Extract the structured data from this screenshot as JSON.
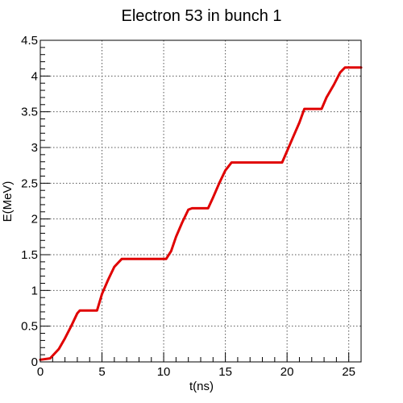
{
  "chart_data": {
    "type": "line",
    "title": "Electron 53 in bunch 1",
    "xlabel": "t(ns)",
    "ylabel": "E(MeV)",
    "xlim": [
      0,
      26
    ],
    "ylim": [
      0,
      4.5
    ],
    "grid": true,
    "x_ticks": [
      0,
      5,
      10,
      15,
      20,
      25
    ],
    "x_tick_labels": [
      "0",
      "5",
      "10",
      "15",
      "20",
      "25"
    ],
    "y_ticks": [
      0,
      0.5,
      1,
      1.5,
      2,
      2.5,
      3,
      3.5,
      4,
      4.5
    ],
    "y_tick_labels": [
      "0",
      "0.5",
      "1",
      "1.5",
      "2",
      "2.5",
      "3",
      "3.5",
      "4",
      "4.5"
    ],
    "series": [
      {
        "color": "#e00000",
        "x": [
          0,
          0.8,
          1.5,
          2.0,
          2.5,
          3.0,
          3.2,
          4.6,
          5.0,
          5.5,
          6.0,
          6.6,
          10.2,
          10.6,
          11.0,
          11.5,
          12.0,
          12.3,
          13.6,
          14.0,
          14.5,
          15.0,
          15.5,
          19.6,
          20.0,
          20.5,
          21.0,
          21.4,
          22.8,
          23.2,
          23.8,
          24.3,
          24.7,
          26.0
        ],
        "y": [
          0.03,
          0.05,
          0.18,
          0.33,
          0.5,
          0.68,
          0.72,
          0.72,
          0.95,
          1.15,
          1.33,
          1.44,
          1.44,
          1.55,
          1.75,
          1.95,
          2.13,
          2.15,
          2.15,
          2.3,
          2.5,
          2.68,
          2.79,
          2.79,
          2.95,
          3.15,
          3.35,
          3.54,
          3.54,
          3.7,
          3.88,
          4.05,
          4.12,
          4.12
        ]
      }
    ]
  }
}
